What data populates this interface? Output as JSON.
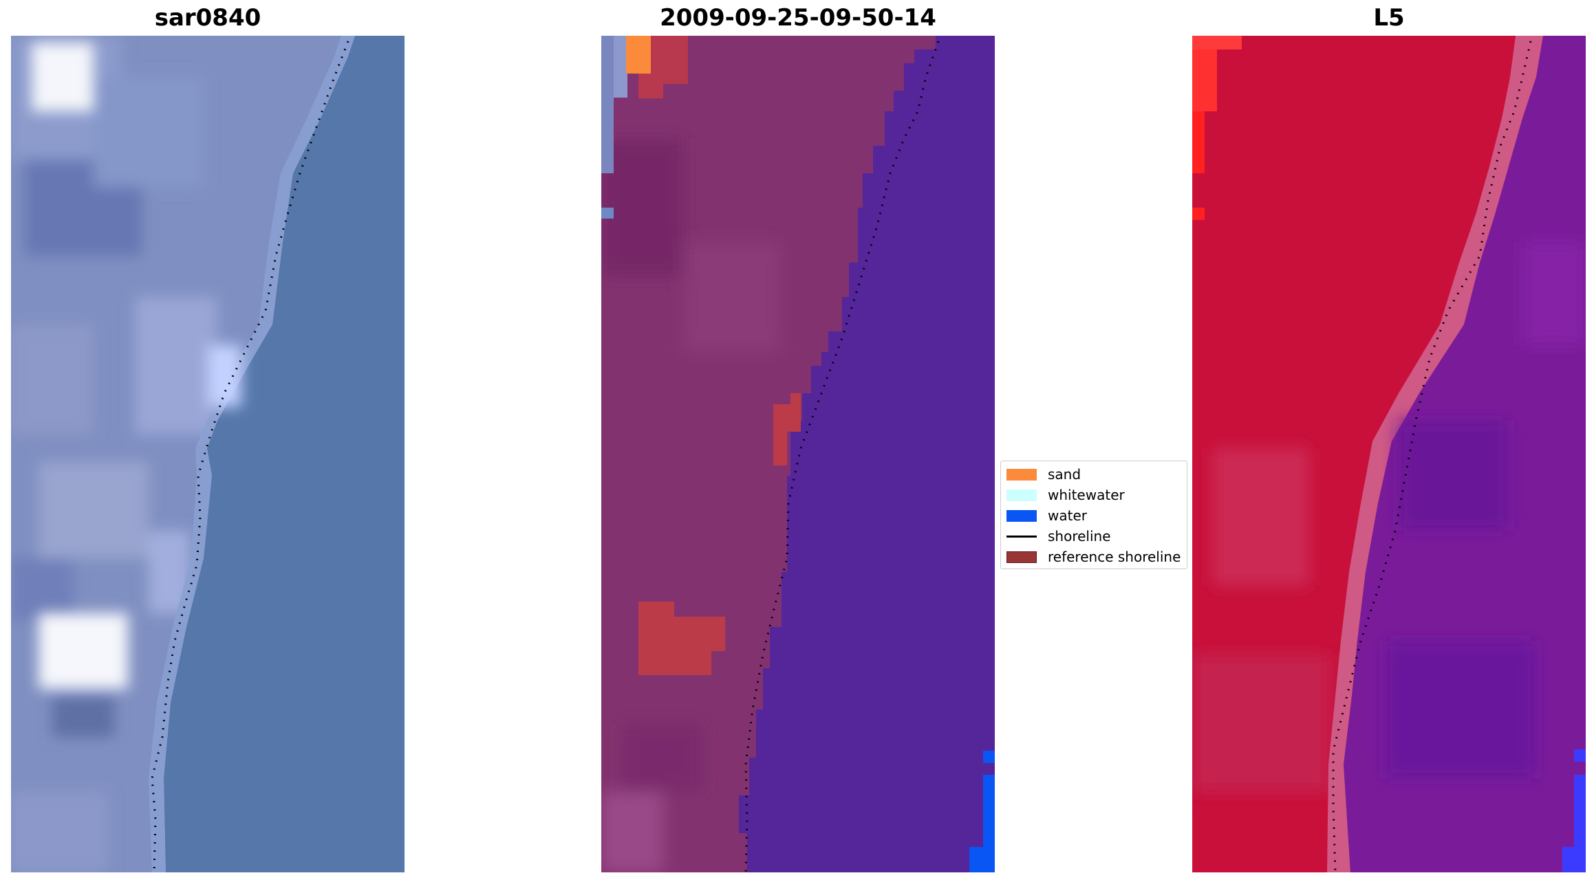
{
  "panels": [
    {
      "title": "sar0840"
    },
    {
      "title": "2009-09-25-09-50-14"
    },
    {
      "title": "L5"
    }
  ],
  "legend": [
    {
      "label": "sand",
      "color": "#fb8b3b",
      "kind": "patch"
    },
    {
      "label": "whitewater",
      "color": "#ccffff",
      "kind": "patch"
    },
    {
      "label": "water",
      "color": "#0a56f4",
      "kind": "patch"
    },
    {
      "label": "shoreline",
      "color": "#000000",
      "kind": "line"
    },
    {
      "label": "reference shoreline",
      "color": "#9a3535",
      "kind": "patch"
    }
  ]
}
